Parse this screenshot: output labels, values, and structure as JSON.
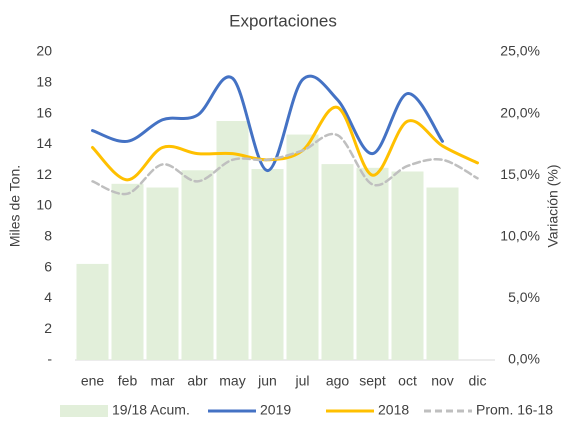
{
  "chart_data": {
    "type": "bar-line",
    "title": "Exportaciones",
    "y_label": "Miles de Ton.",
    "y2_label": "Variación (%)",
    "categories": [
      "ene",
      "feb",
      "mar",
      "abr",
      "may",
      "jun",
      "jul",
      "ago",
      "sept",
      "oct",
      "nov",
      "dic"
    ],
    "ylim": [
      0,
      20
    ],
    "yticks": [
      {
        "value": 0,
        "label": "-"
      },
      2,
      4,
      6,
      8,
      10,
      12,
      14,
      16,
      18,
      20
    ],
    "y2lim": [
      0,
      25
    ],
    "y2ticks": [
      {
        "value": 0,
        "label": "0,0%"
      },
      {
        "value": 5,
        "label": "5,0%"
      },
      {
        "value": 10,
        "label": "10,0%"
      },
      {
        "value": 15,
        "label": "15,0%"
      },
      {
        "value": 20,
        "label": "20,0%"
      },
      {
        "value": 25,
        "label": "25,0%"
      }
    ],
    "legend": "bottom",
    "series": [
      {
        "name": "19/18 Acum.",
        "kind": "bar",
        "axis": "y2",
        "color": "#e2efda",
        "values": [
          7.8,
          14.3,
          14.0,
          15.4,
          19.4,
          15.5,
          18.3,
          15.9,
          15.6,
          15.3,
          14.0,
          null
        ]
      },
      {
        "name": "2019",
        "kind": "line",
        "color": "#4472c4",
        "values": [
          14.9,
          14.2,
          15.6,
          15.9,
          18.3,
          12.3,
          18.2,
          16.9,
          13.4,
          17.3,
          14.2,
          null
        ]
      },
      {
        "name": "2018",
        "kind": "line",
        "color": "#ffc000",
        "values": [
          13.8,
          11.7,
          13.8,
          13.4,
          13.4,
          13.0,
          13.6,
          16.4,
          12.0,
          15.5,
          13.9,
          12.8
        ]
      },
      {
        "name": "Prom. 16-18",
        "kind": "line",
        "dashed": true,
        "color": "#bfbfbf",
        "values": [
          11.6,
          10.8,
          12.7,
          11.6,
          13.0,
          13.0,
          13.6,
          14.6,
          11.4,
          12.6,
          13.0,
          11.8
        ]
      }
    ]
  }
}
